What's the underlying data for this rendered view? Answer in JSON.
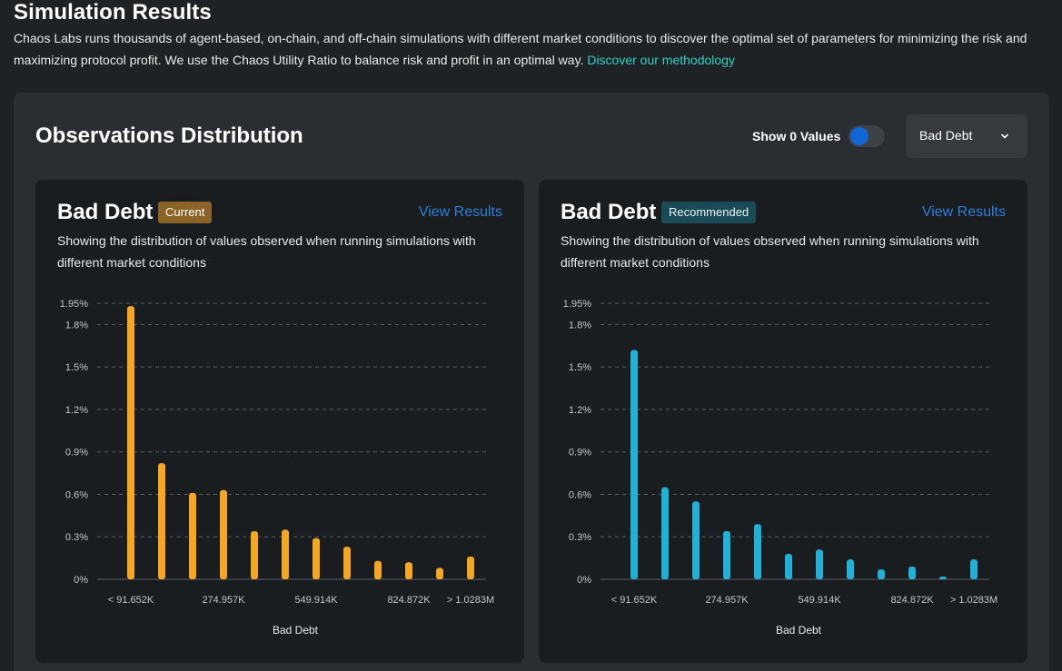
{
  "page": {
    "title": "Simulation Results",
    "description": "Chaos Labs runs thousands of agent-based, on-chain, and off-chain simulations with different market conditions to discover the optimal set of parameters for minimizing the risk and maximizing protocol profit. We use the Chaos Utility Ratio to balance risk and profit in an optimal way.",
    "methodology_link": "Discover our methodology"
  },
  "panel": {
    "title": "Observations Distribution",
    "toggle_label": "Show 0 Values",
    "select_value": "Bad Debt"
  },
  "cards": [
    {
      "title": "Bad Debt",
      "badge": "Current",
      "view_link": "View Results",
      "description": "Showing the distribution of values observed when running simulations with different market conditions"
    },
    {
      "title": "Bad Debt",
      "badge": "Recommended",
      "view_link": "View Results",
      "description": "Showing the distribution of values observed when running simulations with different market conditions"
    }
  ],
  "colors": {
    "current": "#f5a623",
    "recommended": "#21b1d6",
    "grid": "#5a5f64",
    "tick": "#c4c7ca"
  },
  "chart_data": [
    {
      "type": "bar",
      "title": "Bad Debt",
      "xlabel": "Bad Debt",
      "ylabel": "",
      "ylim": [
        0,
        1.95
      ],
      "y_ticks": [
        "0%",
        "0.3%",
        "0.6%",
        "0.9%",
        "1.2%",
        "1.5%",
        "1.8%",
        "1.95%"
      ],
      "y_tick_values": [
        0,
        0.3,
        0.6,
        0.9,
        1.2,
        1.5,
        1.8,
        1.95
      ],
      "x_tick_labels": [
        "< 91.652K",
        "274.957K",
        "549.914K",
        "824.872K",
        "> 1.0283M"
      ],
      "x_tick_bins": [
        0,
        3,
        6,
        9,
        11
      ],
      "bins": 12,
      "values": [
        1.93,
        0.82,
        0.61,
        0.63,
        0.34,
        0.35,
        0.29,
        0.23,
        0.13,
        0.12,
        0.08,
        0.16
      ]
    },
    {
      "type": "bar",
      "title": "Bad Debt",
      "xlabel": "Bad Debt",
      "ylabel": "",
      "ylim": [
        0,
        1.95
      ],
      "y_ticks": [
        "0%",
        "0.3%",
        "0.6%",
        "0.9%",
        "1.2%",
        "1.5%",
        "1.8%",
        "1.95%"
      ],
      "y_tick_values": [
        0,
        0.3,
        0.6,
        0.9,
        1.2,
        1.5,
        1.8,
        1.95
      ],
      "x_tick_labels": [
        "< 91.652K",
        "274.957K",
        "549.914K",
        "824.872K",
        "> 1.0283M"
      ],
      "x_tick_bins": [
        0,
        3,
        6,
        9,
        11
      ],
      "bins": 12,
      "values": [
        1.62,
        0.65,
        0.55,
        0.34,
        0.39,
        0.18,
        0.21,
        0.14,
        0.07,
        0.09,
        0.01,
        0.14
      ]
    }
  ]
}
